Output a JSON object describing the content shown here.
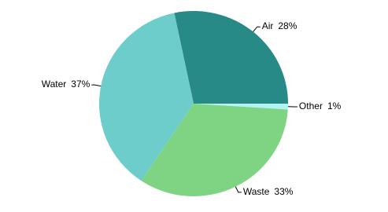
{
  "chart_data": {
    "type": "pie",
    "categories": [
      "Air",
      "Other",
      "Waste",
      "Water"
    ],
    "values": [
      28,
      1,
      33,
      37
    ],
    "value_labels": [
      "28%",
      "1%",
      "33%",
      "37%"
    ],
    "colors": [
      "#288a86",
      "#b0f4f4",
      "#7fd484",
      "#6dcdca"
    ]
  }
}
